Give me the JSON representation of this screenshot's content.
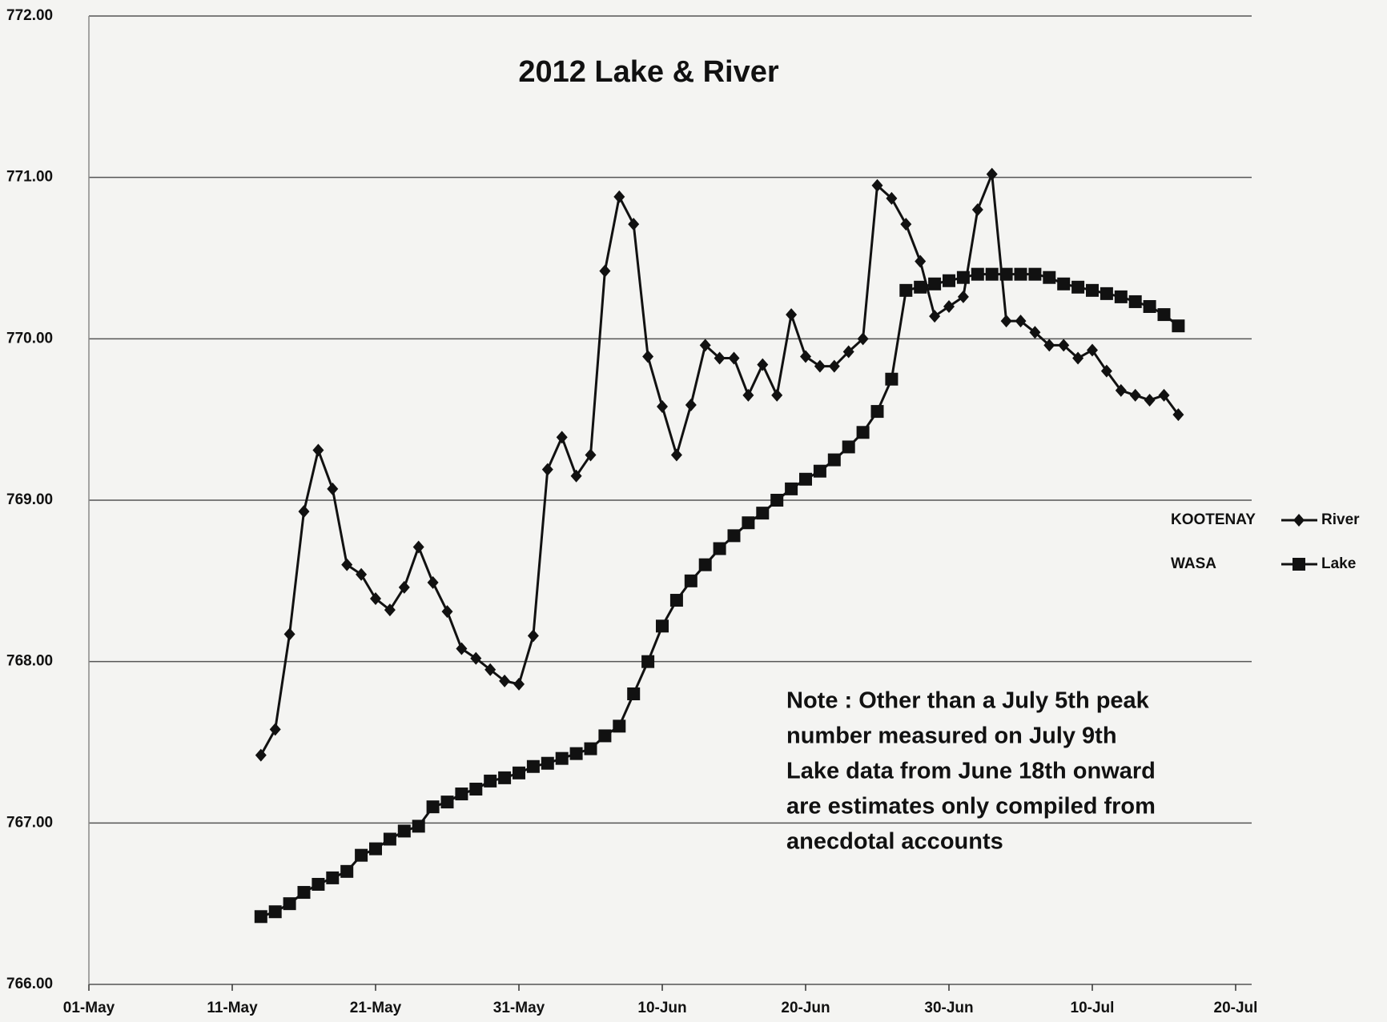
{
  "chart_data": {
    "type": "line",
    "title": "2012 Lake & River",
    "x": [
      "13-May",
      "14-May",
      "15-May",
      "16-May",
      "17-May",
      "18-May",
      "19-May",
      "20-May",
      "21-May",
      "22-May",
      "23-May",
      "24-May",
      "25-May",
      "26-May",
      "27-May",
      "28-May",
      "29-May",
      "30-May",
      "31-May",
      "01-Jun",
      "02-Jun",
      "03-Jun",
      "04-Jun",
      "05-Jun",
      "06-Jun",
      "07-Jun",
      "08-Jun",
      "09-Jun",
      "10-Jun",
      "11-Jun",
      "12-Jun",
      "13-Jun",
      "14-Jun",
      "15-Jun",
      "16-Jun",
      "17-Jun",
      "18-Jun",
      "19-Jun",
      "20-Jun",
      "21-Jun",
      "22-Jun",
      "23-Jun",
      "24-Jun",
      "25-Jun",
      "26-Jun",
      "27-Jun",
      "28-Jun",
      "29-Jun",
      "30-Jun",
      "01-Jul",
      "02-Jul",
      "03-Jul",
      "04-Jul",
      "05-Jul",
      "06-Jul",
      "07-Jul",
      "08-Jul",
      "09-Jul",
      "10-Jul",
      "11-Jul",
      "12-Jul",
      "13-Jul",
      "14-Jul",
      "15-Jul",
      "16-Jul"
    ],
    "series": [
      {
        "name": "River",
        "color": "#111111",
        "marker": "diamond",
        "values": [
          767.42,
          767.58,
          768.17,
          768.93,
          769.31,
          769.07,
          768.6,
          768.54,
          768.39,
          768.32,
          768.46,
          768.71,
          768.49,
          768.31,
          768.08,
          768.02,
          767.95,
          767.88,
          767.86,
          768.16,
          769.19,
          769.39,
          769.15,
          769.28,
          770.42,
          770.88,
          770.71,
          769.89,
          769.58,
          769.28,
          769.59,
          769.96,
          769.88,
          769.88,
          769.65,
          769.84,
          769.65,
          770.15,
          769.89,
          769.83,
          769.83,
          769.92,
          770.0,
          770.95,
          770.87,
          770.71,
          770.48,
          770.14,
          770.2,
          770.26,
          770.8,
          771.02,
          770.11,
          770.11,
          770.04,
          769.96,
          769.96,
          769.88,
          769.93,
          769.8,
          769.68,
          769.65,
          769.62,
          769.65,
          769.53
        ]
      },
      {
        "name": "Lake",
        "color": "#111111",
        "marker": "square",
        "values": [
          766.42,
          766.45,
          766.5,
          766.57,
          766.62,
          766.66,
          766.7,
          766.8,
          766.84,
          766.9,
          766.95,
          766.98,
          767.1,
          767.13,
          767.18,
          767.21,
          767.26,
          767.28,
          767.31,
          767.35,
          767.37,
          767.4,
          767.43,
          767.46,
          767.54,
          767.6,
          767.8,
          768.0,
          768.22,
          768.38,
          768.5,
          768.6,
          768.7,
          768.78,
          768.86,
          768.92,
          769.0,
          769.07,
          769.13,
          769.18,
          769.25,
          769.33,
          769.42,
          769.55,
          769.75,
          770.3,
          770.32,
          770.34,
          770.36,
          770.38,
          770.4,
          770.4,
          770.4,
          770.4,
          770.4,
          770.38,
          770.34,
          770.32,
          770.3,
          770.28,
          770.26,
          770.23,
          770.2,
          770.15,
          770.08
        ]
      }
    ],
    "xlim": [
      "01-May",
      "20-Jul"
    ],
    "xticks": [
      "01-May",
      "11-May",
      "21-May",
      "31-May",
      "10-Jun",
      "20-Jun",
      "30-Jun",
      "10-Jul",
      "20-Jul"
    ],
    "ylim": [
      766,
      772
    ],
    "yticks": [
      {
        "value": 766,
        "label": "766.00"
      },
      {
        "value": 767,
        "label": "767.00"
      },
      {
        "value": 768,
        "label": "768.00"
      },
      {
        "value": 769,
        "label": "769.00"
      },
      {
        "value": 770,
        "label": "770.00"
      },
      {
        "value": 771,
        "label": "771.00"
      },
      {
        "value": 772,
        "label": "772.00"
      }
    ],
    "grid": true,
    "legend": "right",
    "legend_annotations": [
      "KOOTENAY",
      "WASA"
    ],
    "note": [
      "Note : Other than a July 5th peak",
      "number measured on July 9th",
      "Lake data from June 18th onward",
      "are estimates only  compiled from",
      "anecdotal  accounts"
    ]
  }
}
